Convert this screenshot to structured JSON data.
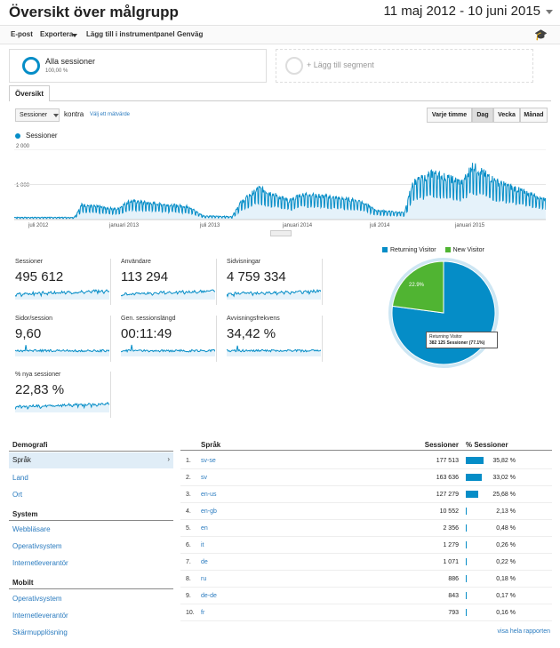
{
  "header": {
    "title": "Översikt över målgrupp",
    "date_range": "11 maj 2012 - 10 juni 2015"
  },
  "toolbar": {
    "items": [
      "E-post",
      "Exportera",
      "Lägg till i instrumentpanel",
      "Genväg"
    ]
  },
  "segments": {
    "all_label": "Alla sessioner",
    "all_pct": "100,00 %",
    "add_label": "+ Lägg till segment"
  },
  "tabs": {
    "overview": "Översikt"
  },
  "controls": {
    "metric": "Sessioner",
    "versus": "kontra",
    "choose_metric": "Välj ett mätvärde",
    "granularity": [
      "Varje timme",
      "Dag",
      "Vecka",
      "Månad"
    ],
    "selected_granularity": "Dag"
  },
  "chart_data": {
    "type": "area",
    "series": [
      {
        "name": "Sessioner",
        "color": "#058dc7"
      }
    ],
    "y_ticks": [
      "2 000",
      "1 000"
    ],
    "ylim": [
      0,
      2000
    ],
    "x_ticks": [
      "juli 2012",
      "januari 2013",
      "juli 2013",
      "januari 2014",
      "juli 2014",
      "januari 2015"
    ],
    "x_range": [
      "2012-05-11",
      "2015-06-10"
    ],
    "anchors": [
      {
        "date": "2012-05-11",
        "value": 60
      },
      {
        "date": "2012-09-15",
        "value": 60
      },
      {
        "date": "2012-10-01",
        "value": 400
      },
      {
        "date": "2012-12-15",
        "value": 280
      },
      {
        "date": "2013-01-10",
        "value": 500
      },
      {
        "date": "2013-05-15",
        "value": 350
      },
      {
        "date": "2013-06-15",
        "value": 100
      },
      {
        "date": "2013-08-15",
        "value": 80
      },
      {
        "date": "2013-09-01",
        "value": 450
      },
      {
        "date": "2013-10-10",
        "value": 850
      },
      {
        "date": "2013-12-15",
        "value": 500
      },
      {
        "date": "2014-01-10",
        "value": 700
      },
      {
        "date": "2014-05-15",
        "value": 500
      },
      {
        "date": "2014-06-15",
        "value": 250
      },
      {
        "date": "2014-08-15",
        "value": 180
      },
      {
        "date": "2014-09-01",
        "value": 1000
      },
      {
        "date": "2014-10-15",
        "value": 1250
      },
      {
        "date": "2014-12-15",
        "value": 1000
      },
      {
        "date": "2015-01-05",
        "value": 1450
      },
      {
        "date": "2015-03-01",
        "value": 1000
      },
      {
        "date": "2015-06-10",
        "value": 550
      }
    ],
    "grid": true,
    "legend": "top-left"
  },
  "kpis": [
    {
      "label": "Sessioner",
      "value": "495 612"
    },
    {
      "label": "Användare",
      "value": "113 294"
    },
    {
      "label": "Sidvisningar",
      "value": "4 759 334"
    },
    {
      "label": "Sidor/session",
      "value": "9,60"
    },
    {
      "label": "Gen. sessionslängd",
      "value": "00:11:49"
    },
    {
      "label": "Avvisningsfrekvens",
      "value": "34,42 %"
    },
    {
      "label": "% nya sessioner",
      "value": "22,83 %"
    }
  ],
  "pie": {
    "legend": [
      {
        "name": "Returning Visitor",
        "color": "#058dc7"
      },
      {
        "name": "New Visitor",
        "color": "#50b432"
      }
    ],
    "new_label": "22.9%",
    "values": [
      77.1,
      22.9
    ],
    "tooltip_line1": "Returning Visitor",
    "tooltip_line2": "382 125 Sessioner (77.1%)"
  },
  "sidebar": {
    "demografi": "Demografi",
    "demografi_items": [
      "Språk",
      "Land",
      "Ort"
    ],
    "system": "System",
    "system_items": [
      "Webbläsare",
      "Operativsystem",
      "Internetleverantör"
    ],
    "mobilt": "Mobilt",
    "mobilt_items": [
      "Operativsystem",
      "Internetleverantör",
      "Skärmupplösning"
    ]
  },
  "table": {
    "col_lang": "Språk",
    "col_sessions": "Sessioner",
    "col_pct": "% Sessioner",
    "rows": [
      {
        "n": "1.",
        "lang": "sv-se",
        "sessions": "177 513",
        "pct": "35,82 %",
        "value": 35.82
      },
      {
        "n": "2.",
        "lang": "sv",
        "sessions": "163 636",
        "pct": "33,02 %",
        "value": 33.02
      },
      {
        "n": "3.",
        "lang": "en-us",
        "sessions": "127 279",
        "pct": "25,68 %",
        "value": 25.68
      },
      {
        "n": "4.",
        "lang": "en-gb",
        "sessions": "10 552",
        "pct": "2,13 %",
        "value": 2.13
      },
      {
        "n": "5.",
        "lang": "en",
        "sessions": "2 356",
        "pct": "0,48 %",
        "value": 0.48
      },
      {
        "n": "6.",
        "lang": "it",
        "sessions": "1 279",
        "pct": "0,26 %",
        "value": 0.26
      },
      {
        "n": "7.",
        "lang": "de",
        "sessions": "1 071",
        "pct": "0,22 %",
        "value": 0.22
      },
      {
        "n": "8.",
        "lang": "ru",
        "sessions": "886",
        "pct": "0,18 %",
        "value": 0.18
      },
      {
        "n": "9.",
        "lang": "de-de",
        "sessions": "843",
        "pct": "0,17 %",
        "value": 0.17
      },
      {
        "n": "10.",
        "lang": "fr",
        "sessions": "793",
        "pct": "0,16 %",
        "value": 0.16
      }
    ],
    "footer": "visa hela rapporten"
  }
}
